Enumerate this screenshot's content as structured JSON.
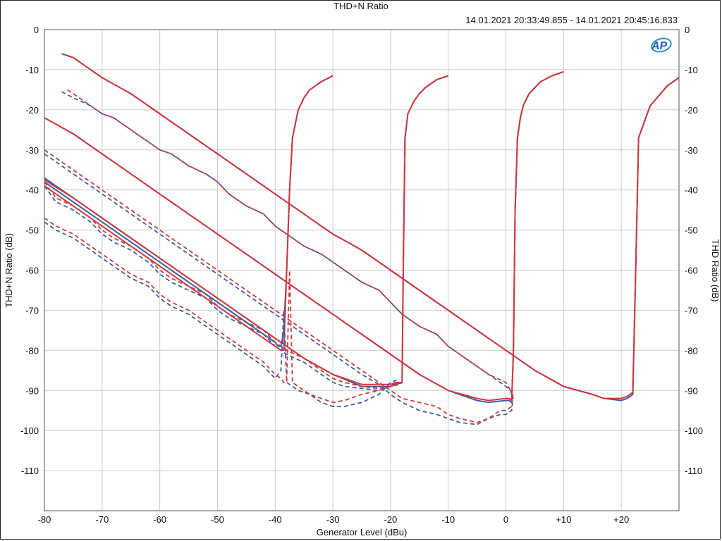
{
  "chart_data": {
    "type": "line",
    "title": "THD+N Ratio",
    "subtitle": "14.01.2021 20:33:49.855 - 14.01.2021 20:45:16.833",
    "xlabel": "Generator Level (dBu)",
    "ylabel": "THD+N Ratio (dB)",
    "ylabel_right": "THD Ratio (dB)",
    "xlim": [
      -80,
      30
    ],
    "ylim": [
      -120,
      0
    ],
    "x_ticks": [
      -80,
      -70,
      -60,
      -50,
      -40,
      -30,
      -20,
      -10,
      0,
      10,
      20
    ],
    "x_tick_labels": [
      "-80",
      "-70",
      "-60",
      "-50",
      "-40",
      "-30",
      "-20",
      "-10",
      "0",
      "+10",
      "+20"
    ],
    "y_ticks": [
      0,
      -10,
      -20,
      -30,
      -40,
      -50,
      -60,
      -70,
      -80,
      -90,
      -100,
      -110
    ],
    "y_tick_labels": [
      "0",
      "-10",
      "-20",
      "-30",
      "-40",
      "-50",
      "-60",
      "-70",
      "-80",
      "-90",
      "-100",
      "-110"
    ],
    "grid": true,
    "colors": {
      "blue": "#3a5ea8",
      "red": "#d0393b",
      "dark": "#8b2233"
    },
    "series": [
      {
        "color": "blue",
        "dash": false,
        "x": [
          -77,
          -75,
          -70,
          -65,
          -60,
          -55,
          -50,
          -45,
          -40,
          -35,
          -30,
          -25,
          -20,
          -15,
          -10,
          -5,
          0,
          5,
          10,
          15,
          17,
          20,
          21,
          22,
          22.5,
          23,
          25,
          28,
          30
        ],
        "y": [
          -6,
          -7,
          -12,
          -16,
          -21,
          -26,
          -31,
          -36,
          -41,
          -46,
          -51,
          -55,
          -60,
          -65,
          -70,
          -75,
          -80,
          -85,
          -89,
          -91,
          -92,
          -92.5,
          -92,
          -91,
          -60,
          -27,
          -19,
          -14,
          -12
        ]
      },
      {
        "color": "red",
        "dash": false,
        "x": [
          -76,
          -75,
          -70,
          -65,
          -60,
          -55,
          -50,
          -45,
          -40,
          -35,
          -30,
          -25,
          -20,
          -15,
          -10,
          -5,
          0,
          5,
          10,
          15,
          17,
          20,
          21,
          22,
          22.5,
          23,
          25,
          28,
          30
        ],
        "y": [
          -6.5,
          -7,
          -12,
          -16,
          -21,
          -26,
          -31,
          -36,
          -41,
          -46,
          -51,
          -55,
          -60,
          -65,
          -70,
          -75,
          -80,
          -85,
          -89,
          -91,
          -92,
          -92,
          -91.5,
          -90.5,
          -60,
          -27,
          -19,
          -14,
          -12
        ]
      },
      {
        "color": "blue",
        "dash": true,
        "x": [
          -77,
          -75,
          -72,
          -70,
          -68,
          -65,
          -62,
          -60,
          -58,
          -55,
          -52,
          -50,
          -48,
          -45,
          -42,
          -40,
          -38,
          -35,
          -32,
          -30,
          -28,
          -25,
          -22,
          -20,
          -18,
          -15,
          -12,
          -10,
          -8,
          -5,
          -3,
          0,
          0.8,
          1,
          1.3
        ],
        "y": [
          -15.5,
          -17,
          -19,
          -21,
          -22,
          -25,
          -28,
          -30,
          -31,
          -34,
          -36,
          -38,
          -41,
          -44,
          -46,
          -49,
          -51,
          -54,
          -56,
          -58,
          -60,
          -63,
          -65,
          -68,
          -71,
          -74,
          -76,
          -79,
          -81,
          -84,
          -86,
          -89,
          -90,
          -91,
          -92
        ]
      },
      {
        "color": "red",
        "dash": true,
        "x": [
          -76,
          -75,
          -72,
          -70,
          -68,
          -65,
          -62,
          -60,
          -58,
          -55,
          -52,
          -50,
          -48,
          -45,
          -42,
          -40,
          -38,
          -35,
          -32,
          -30,
          -28,
          -25,
          -22,
          -20,
          -18,
          -15,
          -12,
          -10,
          -8,
          -5,
          -3,
          0,
          0.8,
          1,
          1.3
        ],
        "y": [
          -15,
          -16,
          -19,
          -21,
          -22,
          -25,
          -28,
          -30,
          -31,
          -34,
          -36,
          -38,
          -41,
          -44,
          -46,
          -49,
          -51,
          -54,
          -56,
          -58,
          -60,
          -63,
          -65,
          -68,
          -71,
          -74,
          -76,
          -79,
          -81,
          -84,
          -86,
          -88,
          -90,
          -91,
          -92
        ]
      },
      {
        "color": "blue",
        "dash": false,
        "x": [
          -80,
          -75,
          -70,
          -65,
          -60,
          -55,
          -50,
          -45,
          -40,
          -35,
          -30,
          -25,
          -20,
          -15,
          -10,
          -5,
          -3,
          0,
          0.5,
          1,
          1.3,
          1.6,
          2,
          2.5,
          3,
          4,
          6,
          8,
          10
        ],
        "y": [
          -22,
          -26,
          -31,
          -36,
          -41,
          -46,
          -51,
          -56,
          -61,
          -66,
          -71,
          -76,
          -81,
          -86,
          -90,
          -92.5,
          -93,
          -92.5,
          -92.5,
          -93,
          -80,
          -45,
          -27,
          -22,
          -19,
          -16,
          -13,
          -11.5,
          -10.5
        ]
      },
      {
        "color": "red",
        "dash": false,
        "x": [
          -80,
          -75,
          -70,
          -65,
          -60,
          -55,
          -50,
          -45,
          -40,
          -35,
          -30,
          -25,
          -20,
          -15,
          -10,
          -5,
          -3,
          0,
          0.5,
          1,
          1.3,
          1.6,
          2,
          2.5,
          3,
          4,
          6,
          8,
          10
        ],
        "y": [
          -22,
          -26,
          -31,
          -36,
          -41,
          -46,
          -51,
          -56,
          -61,
          -66,
          -71,
          -76,
          -81,
          -86,
          -90,
          -92,
          -92.5,
          -92,
          -92,
          -92.5,
          -80,
          -45,
          -27,
          -22,
          -19,
          -16,
          -13,
          -11.5,
          -10.5
        ]
      },
      {
        "color": "blue",
        "dash": true,
        "x": [
          -80,
          -78,
          -75,
          -72,
          -70,
          -68,
          -65,
          -62,
          -60,
          -58,
          -55,
          -52,
          -50,
          -48,
          -45,
          -42,
          -40,
          -38,
          -35,
          -32,
          -30,
          -28,
          -25,
          -22,
          -20,
          -18,
          -15,
          -12,
          -10,
          -8,
          -5,
          -3,
          -1,
          0,
          0.5,
          1,
          1.2
        ],
        "y": [
          -31,
          -33,
          -36,
          -39,
          -41,
          -43,
          -46,
          -49,
          -51,
          -53,
          -56,
          -59,
          -61,
          -63,
          -66,
          -69,
          -71,
          -73,
          -76,
          -79,
          -81,
          -83,
          -86,
          -88.5,
          -91,
          -93,
          -95,
          -96,
          -97,
          -98,
          -98.5,
          -97,
          -96,
          -96,
          -95.5,
          -95,
          -92
        ]
      },
      {
        "color": "red",
        "dash": true,
        "x": [
          -80,
          -78,
          -75,
          -72,
          -70,
          -68,
          -65,
          -62,
          -60,
          -58,
          -55,
          -52,
          -50,
          -48,
          -45,
          -42,
          -40,
          -38,
          -35,
          -32,
          -30,
          -28,
          -25,
          -22,
          -20,
          -18,
          -15,
          -12,
          -10,
          -8,
          -5,
          -3,
          -1,
          0,
          0.5,
          1,
          1.2
        ],
        "y": [
          -30,
          -32,
          -35,
          -38,
          -40,
          -42,
          -45,
          -48,
          -50,
          -52,
          -55,
          -58,
          -60,
          -62,
          -65,
          -68,
          -70,
          -72,
          -75,
          -78,
          -80,
          -82,
          -85,
          -88,
          -90,
          -92,
          -93,
          -94,
          -96,
          -97,
          -98,
          -97,
          -95,
          -95,
          -94.5,
          -94,
          -91
        ]
      },
      {
        "color": "blue",
        "dash": false,
        "x": [
          -80,
          -75,
          -70,
          -65,
          -60,
          -55,
          -50,
          -45,
          -40,
          -35,
          -30,
          -25,
          -22,
          -20,
          -19,
          -18,
          -17.8,
          -17.5,
          -17,
          -16,
          -15,
          -14,
          -12,
          -10
        ],
        "y": [
          -37,
          -42,
          -47,
          -52,
          -57,
          -62,
          -67,
          -72,
          -77,
          -82,
          -86,
          -89,
          -89,
          -89,
          -88.5,
          -88,
          -60,
          -27,
          -21,
          -18,
          -16,
          -14.5,
          -12.5,
          -11.5
        ]
      },
      {
        "color": "red",
        "dash": false,
        "x": [
          -80,
          -75,
          -70,
          -65,
          -60,
          -55,
          -50,
          -45,
          -40,
          -35,
          -30,
          -25,
          -22,
          -20,
          -19,
          -18,
          -17.8,
          -17.5,
          -17,
          -16,
          -15,
          -14,
          -12,
          -10
        ],
        "y": [
          -37.5,
          -42,
          -47,
          -52,
          -57,
          -62,
          -67,
          -72,
          -77,
          -82,
          -86,
          -88.5,
          -88.5,
          -88.5,
          -88,
          -88,
          -60,
          -27,
          -21,
          -18,
          -16,
          -14.5,
          -12.5,
          -11.5
        ]
      },
      {
        "color": "blue",
        "dash": true,
        "x": [
          -80,
          -78,
          -75,
          -72,
          -70,
          -68,
          -65,
          -62,
          -60,
          -58,
          -55,
          -52,
          -50,
          -48,
          -45,
          -42,
          -40,
          -38,
          -35,
          -32,
          -30,
          -28,
          -25,
          -22,
          -20,
          -18.5,
          -18
        ],
        "y": [
          -39,
          -43,
          -45,
          -48,
          -51,
          -53,
          -55,
          -58,
          -61,
          -63,
          -65,
          -67,
          -70,
          -72,
          -74,
          -76,
          -79,
          -81,
          -83,
          -86,
          -88,
          -89,
          -89.5,
          -90,
          -89,
          -88,
          -88
        ]
      },
      {
        "color": "red",
        "dash": true,
        "x": [
          -80,
          -78,
          -75,
          -72,
          -70,
          -68,
          -65,
          -62,
          -60,
          -58,
          -55,
          -52,
          -50,
          -48,
          -45,
          -42,
          -40,
          -38,
          -35,
          -32,
          -30,
          -28,
          -25,
          -22,
          -20,
          -18.5,
          -18
        ],
        "y": [
          -38,
          -42,
          -44,
          -47,
          -50,
          -52,
          -54,
          -57,
          -60,
          -62,
          -64,
          -66,
          -69,
          -71,
          -73,
          -75,
          -78,
          -80,
          -82,
          -85,
          -87,
          -88,
          -89,
          -89.5,
          -89,
          -88.5,
          -88
        ]
      },
      {
        "color": "blue",
        "dash": false,
        "x": [
          -80,
          -75,
          -70,
          -65,
          -60,
          -55,
          -50,
          -45,
          -42,
          -40,
          -39.5,
          -39,
          -38.5,
          -38,
          -37.5,
          -37,
          -36,
          -35,
          -34,
          -32,
          -30
        ],
        "y": [
          -38,
          -43,
          -48,
          -53,
          -58,
          -63,
          -68,
          -73,
          -76,
          -78,
          -79,
          -79,
          -75,
          -60,
          -40,
          -27,
          -20,
          -17,
          -15,
          -13,
          -11.5
        ]
      },
      {
        "color": "red",
        "dash": false,
        "x": [
          -80,
          -75,
          -70,
          -65,
          -60,
          -55,
          -50,
          -45,
          -42,
          -40,
          -39,
          -38.5,
          -38,
          -37.5,
          -37,
          -36,
          -35,
          -34,
          -32,
          -30
        ],
        "y": [
          -39,
          -44,
          -49,
          -54,
          -59,
          -64,
          -69,
          -74,
          -77,
          -79,
          -80,
          -80,
          -60,
          -40,
          -27,
          -20,
          -17,
          -15,
          -13,
          -11.5
        ]
      },
      {
        "color": "blue",
        "dash": true,
        "x": [
          -80,
          -78,
          -75,
          -72,
          -70,
          -68,
          -65,
          -62,
          -60,
          -58,
          -55,
          -52,
          -50,
          -48,
          -45,
          -42,
          -40,
          -39,
          -38.5,
          -38,
          -36,
          -34,
          -32,
          -30,
          -28,
          -25,
          -22,
          -20,
          -19
        ],
        "y": [
          -48,
          -50,
          -52,
          -55,
          -57,
          -59,
          -62,
          -64,
          -67,
          -69,
          -71,
          -74,
          -76,
          -78,
          -81,
          -84,
          -87,
          -85,
          -70,
          -88,
          -90,
          -91,
          -93,
          -94,
          -94,
          -93,
          -91,
          -88,
          -87.5
        ]
      },
      {
        "color": "red",
        "dash": true,
        "x": [
          -80,
          -78,
          -75,
          -72,
          -70,
          -68,
          -65,
          -62,
          -60,
          -58,
          -55,
          -52,
          -50,
          -48,
          -45,
          -42,
          -40,
          -39,
          -38.5,
          -38,
          -37.5,
          -37,
          -36,
          -34,
          -32,
          -30,
          -28,
          -25,
          -22,
          -20,
          -19
        ],
        "y": [
          -47,
          -49,
          -51,
          -54,
          -56,
          -58,
          -61,
          -63,
          -66,
          -68,
          -70,
          -73,
          -75,
          -77,
          -80,
          -83,
          -86,
          -87,
          -88,
          -88,
          -60,
          -88,
          -89,
          -91,
          -92,
          -93,
          -92.5,
          -91,
          -90,
          -89,
          -88
        ]
      }
    ]
  }
}
